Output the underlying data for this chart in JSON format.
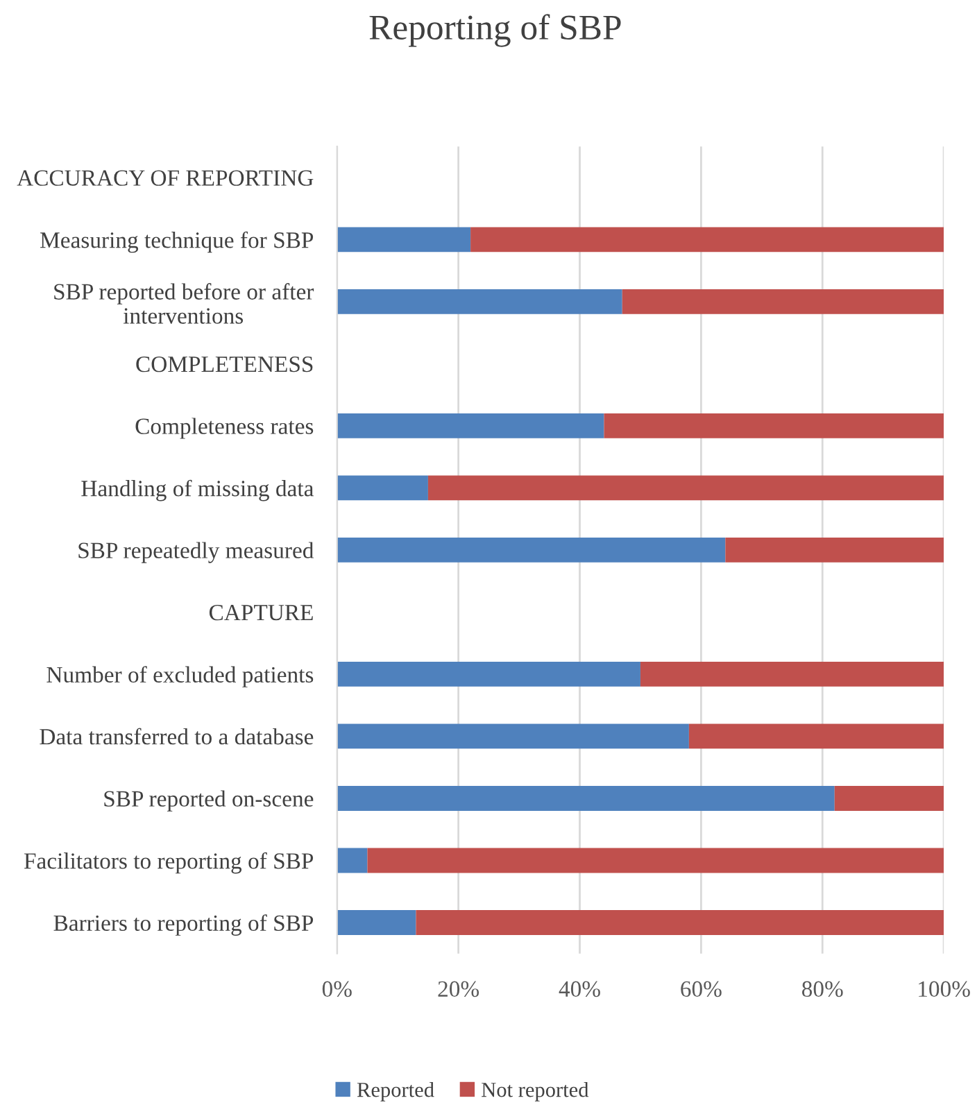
{
  "chart_data": {
    "type": "bar",
    "title": "Reporting of SBP",
    "orientation": "horizontal",
    "stacked": true,
    "categories": [
      "ACCURACY OF REPORTING",
      "Measuring technique for SBP",
      "SBP reported before or after\ninterventions",
      "COMPLETENESS",
      "Completeness rates",
      "Handling of missing data",
      "SBP repeatedly measured",
      "CAPTURE",
      "Number of excluded patients",
      "Data transferred to a database",
      "SBP reported on-scene",
      "Facilitators to reporting of SBP",
      "Barriers to reporting of SBP"
    ],
    "series": [
      {
        "name": "Reported",
        "color": "#4f81bd",
        "values": [
          null,
          22,
          47,
          null,
          44,
          15,
          64,
          null,
          50,
          58,
          82,
          5,
          13
        ]
      },
      {
        "name": "Not reported",
        "color": "#c0504d",
        "values": [
          null,
          78,
          53,
          null,
          56,
          85,
          36,
          null,
          50,
          42,
          18,
          95,
          87
        ]
      }
    ],
    "xlim": [
      0,
      100
    ],
    "xticks": [
      {
        "value": 0,
        "label": "0%"
      },
      {
        "value": 20,
        "label": "20%"
      },
      {
        "value": 40,
        "label": "40%"
      },
      {
        "value": 60,
        "label": "60%"
      },
      {
        "value": 80,
        "label": "80%"
      },
      {
        "value": 100,
        "label": "100%"
      }
    ],
    "grid": "x",
    "legend": "bottom"
  }
}
